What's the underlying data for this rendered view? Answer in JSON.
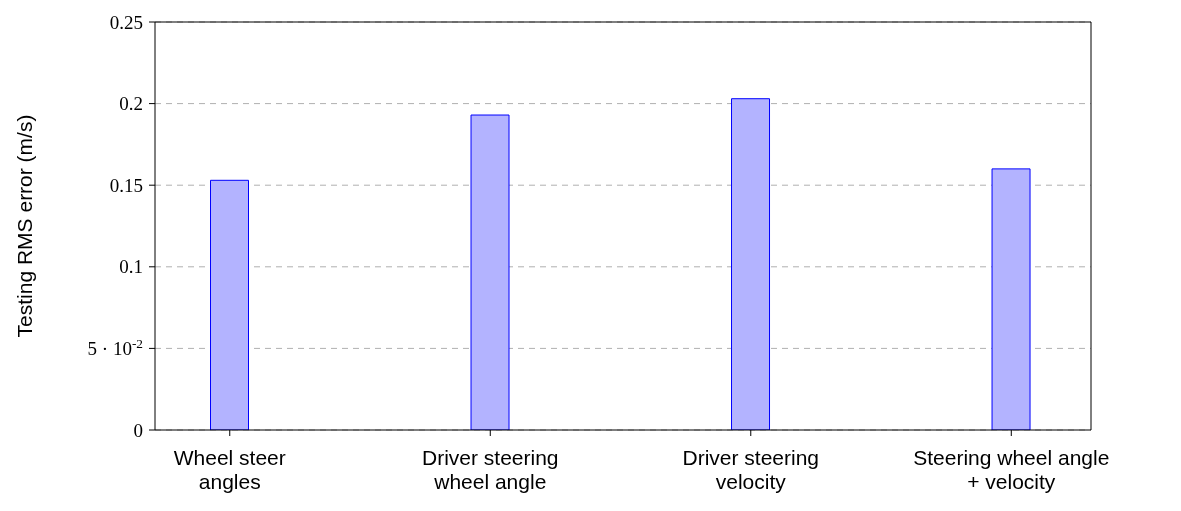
{
  "chart_data": {
    "type": "bar",
    "ylabel": "Testing RMS error (m/s)",
    "categories": [
      "Wheel steer\nangles",
      "Driver steering\nwheel angle",
      "Driver steering\nvelocity",
      "Steering wheel angle\n+ velocity"
    ],
    "values": [
      0.153,
      0.193,
      0.203,
      0.16
    ],
    "color": "#b3b3ff",
    "ylim": [
      0,
      0.25
    ],
    "yticks": [
      0,
      {
        "value": 0.05,
        "label": "5 · 10$^{-2}$"
      },
      0.1,
      0.15,
      0.2,
      0.25
    ],
    "grid": "y"
  }
}
